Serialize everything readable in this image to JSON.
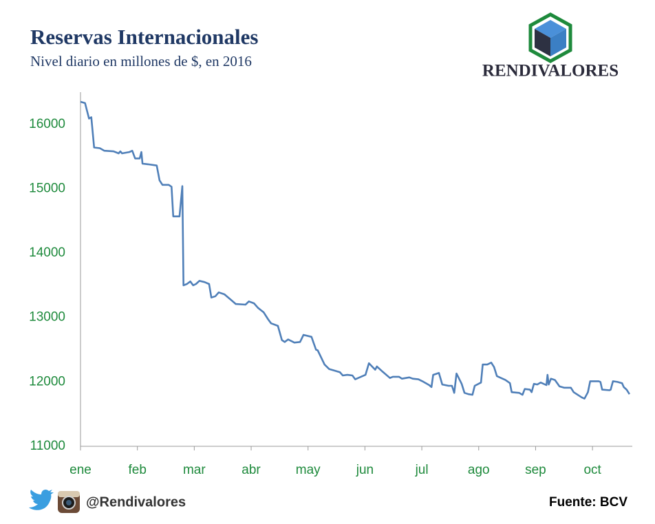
{
  "brand": "RENDIVALORES",
  "social_handle": "@Rendivalores",
  "chart_data": {
    "type": "line",
    "title": "Reservas Internacionales",
    "subtitle": "Nivel diario en millones de $, en 2016",
    "source": "Fuente: BCV",
    "color": "#4f7fb8",
    "x": [
      0,
      0.08,
      0.15,
      0.19,
      0.24,
      0.34,
      0.42,
      0.58,
      0.67,
      0.7,
      0.73,
      0.86,
      0.91,
      0.96,
      1.04,
      1.07,
      1.09,
      1.19,
      1.34,
      1.39,
      1.44,
      1.55,
      1.6,
      1.63,
      1.74,
      1.79,
      1.81,
      1.87,
      1.93,
      1.98,
      2.03,
      2.09,
      2.18,
      2.26,
      2.3,
      2.37,
      2.43,
      2.53,
      2.65,
      2.73,
      2.9,
      2.96,
      3.05,
      3.12,
      3.22,
      3.3,
      3.35,
      3.47,
      3.54,
      3.59,
      3.65,
      3.76,
      3.86,
      3.92,
      4.06,
      4.14,
      4.17,
      4.29,
      4.37,
      4.56,
      4.61,
      4.69,
      4.78,
      4.83,
      5.01,
      5.07,
      5.18,
      5.21,
      5.31,
      5.44,
      5.49,
      5.6,
      5.65,
      5.78,
      5.84,
      5.94,
      6.01,
      6.13,
      6.17,
      6.2,
      6.3,
      6.36,
      6.47,
      6.53,
      6.57,
      6.61,
      6.7,
      6.75,
      6.82,
      6.89,
      6.93,
      7.04,
      7.07,
      7.15,
      7.22,
      7.27,
      7.32,
      7.47,
      7.55,
      7.58,
      7.71,
      7.77,
      7.81,
      7.9,
      7.93,
      7.97,
      8.03,
      8.09,
      8.19,
      8.21,
      8.23,
      8.27,
      8.34,
      8.42,
      8.5,
      8.62,
      8.67,
      8.74,
      8.81,
      8.86,
      8.92,
      8.96,
      9.11,
      9.14,
      9.17,
      9.3,
      9.32,
      9.36,
      9.44,
      9.52,
      9.55,
      9.6,
      9.65
    ],
    "values": [
      16350,
      16330,
      16090,
      16110,
      15640,
      15630,
      15590,
      15580,
      15550,
      15580,
      15550,
      15570,
      15590,
      15470,
      15470,
      15570,
      15390,
      15380,
      15360,
      15130,
      15060,
      15060,
      15030,
      14570,
      14570,
      15040,
      13500,
      13520,
      13560,
      13500,
      13520,
      13570,
      13550,
      13520,
      13310,
      13330,
      13390,
      13360,
      13270,
      13210,
      13200,
      13250,
      13220,
      13150,
      13080,
      12970,
      12910,
      12870,
      12650,
      12620,
      12660,
      12610,
      12620,
      12730,
      12700,
      12500,
      12490,
      12270,
      12200,
      12150,
      12100,
      12110,
      12100,
      12040,
      12110,
      12290,
      12190,
      12240,
      12160,
      12060,
      12080,
      12080,
      12050,
      12070,
      12050,
      12040,
      12010,
      11950,
      11920,
      12110,
      12140,
      11960,
      11940,
      11940,
      11830,
      12130,
      11970,
      11830,
      11810,
      11800,
      11940,
      11990,
      12270,
      12270,
      12300,
      12230,
      12090,
      12030,
      11980,
      11840,
      11830,
      11800,
      11890,
      11880,
      11840,
      11970,
      11960,
      11990,
      11950,
      12110,
      11960,
      12050,
      12030,
      11930,
      11910,
      11910,
      11840,
      11800,
      11760,
      11740,
      11840,
      12010,
      12010,
      12000,
      11880,
      11870,
      11880,
      12010,
      12000,
      11980,
      11920,
      11880,
      11810
    ],
    "xlim": [
      0,
      9.7
    ],
    "xticks": [
      {
        "value": 0,
        "label": "ene"
      },
      {
        "value": 1,
        "label": "feb"
      },
      {
        "value": 2,
        "label": "mar"
      },
      {
        "value": 3,
        "label": "abr"
      },
      {
        "value": 4,
        "label": "may"
      },
      {
        "value": 5,
        "label": "jun"
      },
      {
        "value": 6,
        "label": "jul"
      },
      {
        "value": 7,
        "label": "ago"
      },
      {
        "value": 8,
        "label": "sep"
      },
      {
        "value": 9,
        "label": "oct"
      }
    ],
    "ylim": [
      11000,
      16500
    ],
    "yticks": [
      11000,
      12000,
      13000,
      14000,
      15000,
      16000
    ],
    "grid": false
  }
}
